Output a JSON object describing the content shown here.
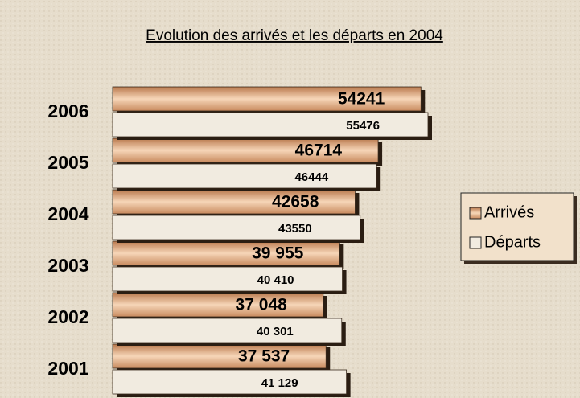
{
  "chart_data": {
    "type": "hbar",
    "title": "Evolution des arrivés et les départs en 2004",
    "categories": [
      "2006",
      "2005",
      "2004",
      "2003",
      "2002",
      "2001"
    ],
    "series": [
      {
        "name": "Arrivés",
        "color": "#d49a6e",
        "values": [
          54241,
          46714,
          42658,
          39955,
          37048,
          37537
        ],
        "value_labels": [
          "54241",
          "46714",
          "42658",
          "39 955",
          "37 048",
          "37 537"
        ]
      },
      {
        "name": "Départs",
        "color": "#f1ebe0",
        "values": [
          55476,
          46444,
          43550,
          40410,
          40301,
          41129
        ],
        "value_labels": [
          "55476",
          "46444",
          "43550",
          "40 410",
          "40 301",
          "41 129"
        ]
      }
    ],
    "legend": "right"
  }
}
